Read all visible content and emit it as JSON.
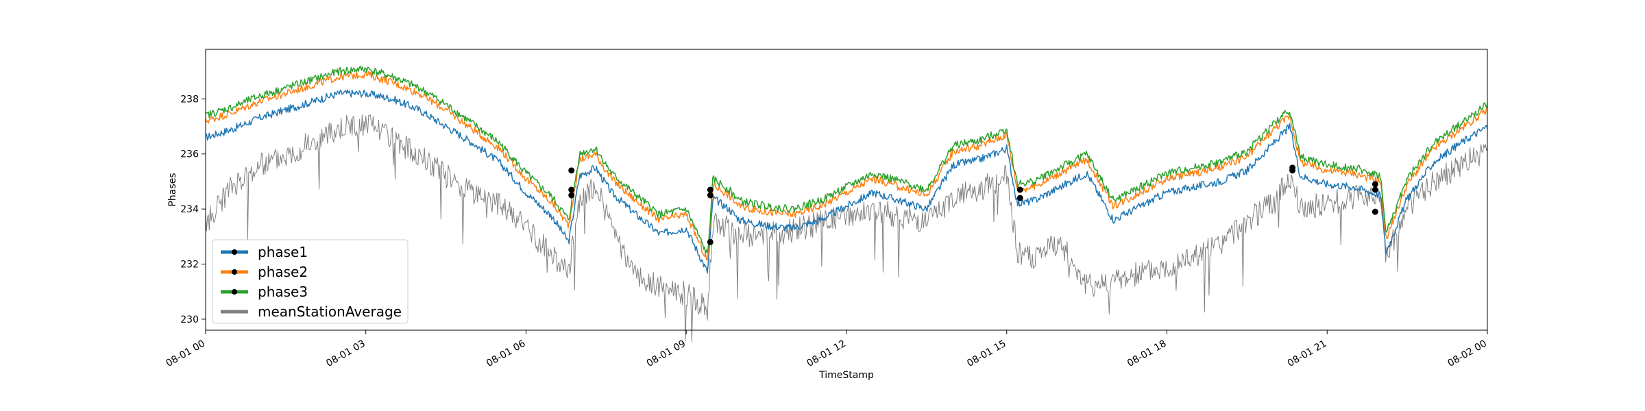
{
  "chart_data": {
    "type": "line",
    "xlabel": "TimeStamp",
    "ylabel": "Phases",
    "xlim": [
      "2023-08-01T00:00",
      "2023-08-02T00:00"
    ],
    "ylim": [
      229.6,
      239.8
    ],
    "x_ticks": [
      {
        "t": 0,
        "label": "08-01 00"
      },
      {
        "t": 3,
        "label": "08-01 03"
      },
      {
        "t": 6,
        "label": "08-01 06"
      },
      {
        "t": 9,
        "label": "08-01 09"
      },
      {
        "t": 12,
        "label": "08-01 12"
      },
      {
        "t": 15,
        "label": "08-01 15"
      },
      {
        "t": 18,
        "label": "08-01 18"
      },
      {
        "t": 21,
        "label": "08-01 21"
      },
      {
        "t": 24,
        "label": "08-02 00"
      }
    ],
    "y_ticks": [
      230,
      232,
      234,
      236,
      238
    ],
    "legend_position": "lower-left",
    "grid": false,
    "x_hours": [
      0,
      0.5,
      1,
      1.5,
      2,
      2.5,
      3,
      3.5,
      4,
      4.5,
      5,
      5.5,
      6,
      6.5,
      6.8,
      7,
      7.3,
      7.6,
      8,
      8.5,
      9,
      9.4,
      9.5,
      9.8,
      10,
      10.5,
      11,
      11.5,
      12,
      12.5,
      13,
      13.5,
      14,
      14.5,
      15,
      15.2,
      15.5,
      16,
      16.5,
      17,
      17.5,
      18,
      18.5,
      19,
      19.5,
      20,
      20.3,
      20.5,
      21,
      21.5,
      22,
      22.1,
      22.5,
      23,
      23.5,
      24
    ],
    "series": [
      {
        "name": "phase1",
        "color": "#1f77b4",
        "width": 1.5,
        "values": [
          236.6,
          236.9,
          237.3,
          237.6,
          237.9,
          238.2,
          238.2,
          238.0,
          237.6,
          237.0,
          236.4,
          235.7,
          234.6,
          233.7,
          232.8,
          235.2,
          235.5,
          234.6,
          233.9,
          233.1,
          233.3,
          231.7,
          234.4,
          234.0,
          233.6,
          233.4,
          233.3,
          233.6,
          234.1,
          234.6,
          234.3,
          234.0,
          235.6,
          235.8,
          236.2,
          234.2,
          234.3,
          234.8,
          235.3,
          233.6,
          234.1,
          234.6,
          234.8,
          235.0,
          235.4,
          236.4,
          237.0,
          235.2,
          234.9,
          234.8,
          234.5,
          232.4,
          234.4,
          235.7,
          236.4,
          237.0
        ]
      },
      {
        "name": "phase2",
        "color": "#ff7f0e",
        "width": 1.5,
        "values": [
          237.2,
          237.5,
          237.9,
          238.2,
          238.5,
          238.8,
          238.9,
          238.6,
          238.2,
          237.6,
          236.9,
          236.2,
          235.1,
          234.2,
          233.4,
          235.8,
          236.0,
          235.1,
          234.4,
          233.6,
          233.8,
          232.1,
          234.9,
          234.5,
          234.1,
          233.9,
          233.8,
          234.1,
          234.6,
          235.1,
          234.8,
          234.5,
          236.1,
          236.3,
          236.7,
          234.7,
          234.8,
          235.3,
          235.8,
          234.1,
          234.6,
          235.1,
          235.3,
          235.5,
          235.9,
          236.9,
          237.4,
          235.7,
          235.4,
          235.3,
          235.0,
          232.9,
          234.9,
          236.2,
          236.9,
          237.6
        ]
      },
      {
        "name": "phase3",
        "color": "#2ca02c",
        "width": 1.5,
        "values": [
          237.4,
          237.7,
          238.1,
          238.4,
          238.7,
          239.0,
          239.1,
          238.8,
          238.4,
          237.8,
          237.1,
          236.4,
          235.3,
          234.4,
          233.6,
          236.0,
          236.2,
          235.3,
          234.6,
          233.8,
          234.0,
          232.3,
          235.1,
          234.7,
          234.3,
          234.1,
          234.0,
          234.3,
          234.8,
          235.3,
          235.0,
          234.7,
          236.3,
          236.5,
          236.9,
          234.9,
          235.0,
          235.5,
          236.0,
          234.3,
          234.8,
          235.3,
          235.5,
          235.7,
          236.1,
          237.1,
          237.6,
          235.9,
          235.6,
          235.5,
          235.2,
          233.1,
          235.1,
          236.4,
          237.1,
          237.8
        ]
      },
      {
        "name": "meanStationAverage",
        "color": "#808080",
        "width": 1,
        "values": [
          233.5,
          234.8,
          235.6,
          236.0,
          236.4,
          236.9,
          237.1,
          236.5,
          236.0,
          235.2,
          234.6,
          234.2,
          233.3,
          232.3,
          231.7,
          234.4,
          234.9,
          233.4,
          231.6,
          231.2,
          230.9,
          230.4,
          233.6,
          233.3,
          233.0,
          233.1,
          233.2,
          233.5,
          233.7,
          234.0,
          233.7,
          233.5,
          234.4,
          234.7,
          235.2,
          232.5,
          232.2,
          232.8,
          231.2,
          231.4,
          231.7,
          231.9,
          232.3,
          232.7,
          233.6,
          234.2,
          235.2,
          234.0,
          234.2,
          234.4,
          234.6,
          232.2,
          234.1,
          235.0,
          235.6,
          236.1
        ]
      }
    ],
    "markers": [
      {
        "t": 6.85,
        "v": 235.4
      },
      {
        "t": 6.85,
        "v": 234.7
      },
      {
        "t": 6.85,
        "v": 234.5
      },
      {
        "t": 9.45,
        "v": 234.7
      },
      {
        "t": 9.45,
        "v": 234.5
      },
      {
        "t": 9.45,
        "v": 232.8
      },
      {
        "t": 15.25,
        "v": 234.7
      },
      {
        "t": 15.25,
        "v": 234.4
      },
      {
        "t": 20.35,
        "v": 235.5
      },
      {
        "t": 20.35,
        "v": 235.4
      },
      {
        "t": 21.9,
        "v": 234.9
      },
      {
        "t": 21.9,
        "v": 234.7
      },
      {
        "t": 21.9,
        "v": 233.9
      }
    ]
  }
}
